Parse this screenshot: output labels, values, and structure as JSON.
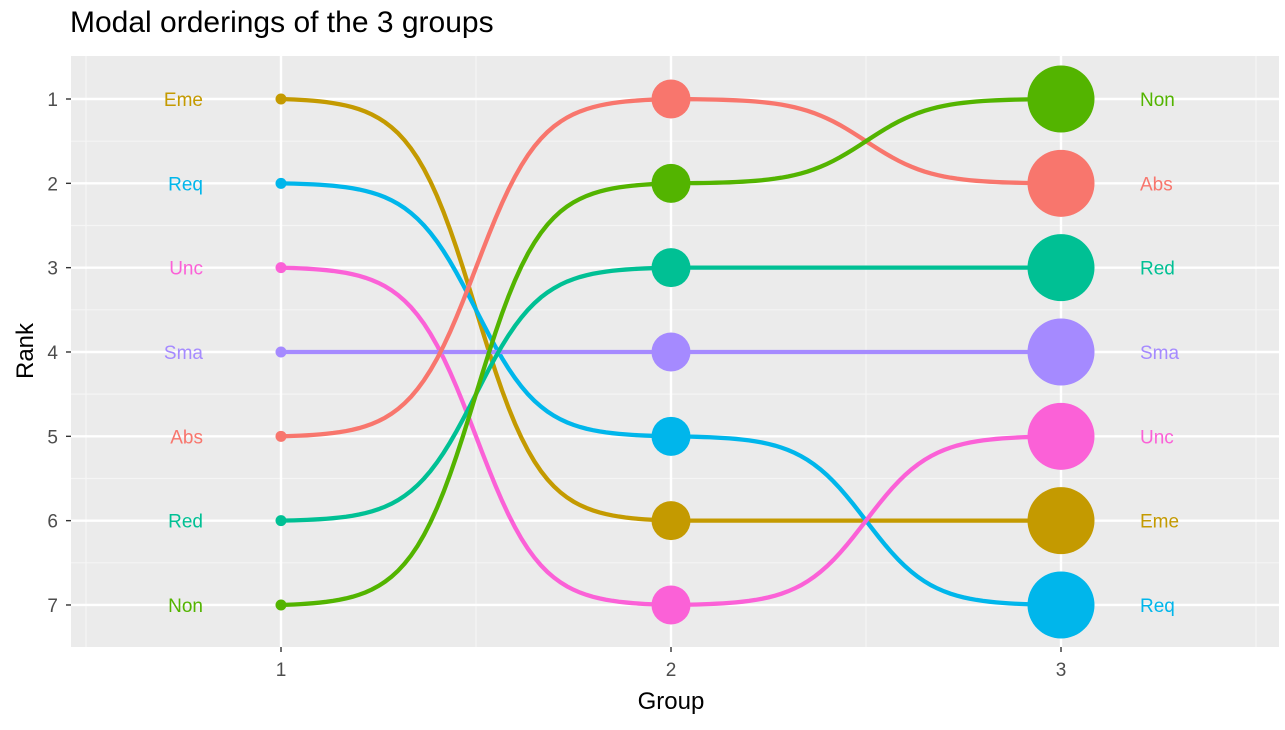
{
  "title": "Modal orderings of the 3 groups",
  "chart_data": {
    "type": "line",
    "title": "Modal orderings of the 3 groups",
    "xlabel": "Group",
    "ylabel": "Rank",
    "x": [
      1,
      2,
      3
    ],
    "x_ticks": [
      "1",
      "2",
      "3"
    ],
    "y_ticks": [
      "1",
      "2",
      "3",
      "4",
      "5",
      "6",
      "7"
    ],
    "ylim": [
      1,
      7
    ],
    "y_reversed": true,
    "grid": true,
    "legend": "none",
    "point_size_by_group": [
      1,
      2,
      3
    ],
    "series": [
      {
        "name": "Eme",
        "color": "#C49A00",
        "values": [
          1,
          6,
          6
        ]
      },
      {
        "name": "Req",
        "color": "#00B6EB",
        "values": [
          2,
          5,
          7
        ]
      },
      {
        "name": "Unc",
        "color": "#FB61D7",
        "values": [
          3,
          7,
          5
        ]
      },
      {
        "name": "Sma",
        "color": "#A58AFF",
        "values": [
          4,
          4,
          4
        ]
      },
      {
        "name": "Abs",
        "color": "#F8766D",
        "values": [
          5,
          1,
          2
        ]
      },
      {
        "name": "Red",
        "color": "#00C094",
        "values": [
          6,
          3,
          3
        ]
      },
      {
        "name": "Non",
        "color": "#53B400",
        "values": [
          7,
          2,
          1
        ]
      }
    ]
  }
}
